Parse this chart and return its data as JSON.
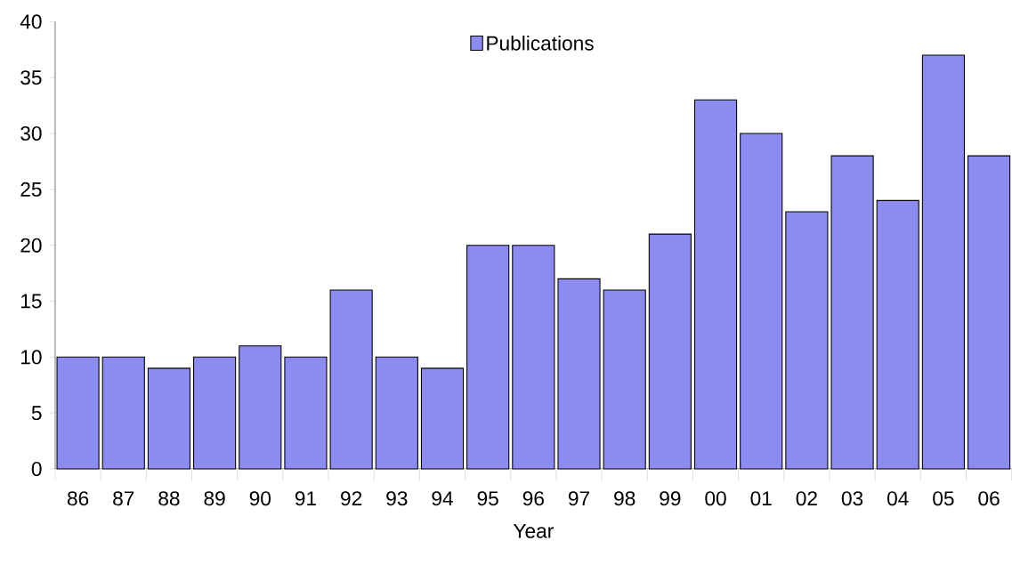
{
  "chart_data": {
    "type": "bar",
    "xlabel": "Year",
    "categories": [
      "86",
      "87",
      "88",
      "89",
      "90",
      "91",
      "92",
      "93",
      "94",
      "95",
      "96",
      "97",
      "98",
      "99",
      "00",
      "01",
      "02",
      "03",
      "04",
      "05",
      "06"
    ],
    "series": [
      {
        "name": "Publications",
        "color": "#8c8cf0",
        "values": [
          10,
          10,
          9,
          10,
          11,
          10,
          16,
          10,
          9,
          20,
          20,
          17,
          16,
          21,
          33,
          30,
          23,
          28,
          24,
          37,
          28
        ]
      }
    ],
    "ylim": [
      0,
      40
    ],
    "yticks": [
      0,
      5,
      10,
      15,
      20,
      25,
      30,
      35,
      40
    ],
    "legend": "top",
    "grid": false
  }
}
